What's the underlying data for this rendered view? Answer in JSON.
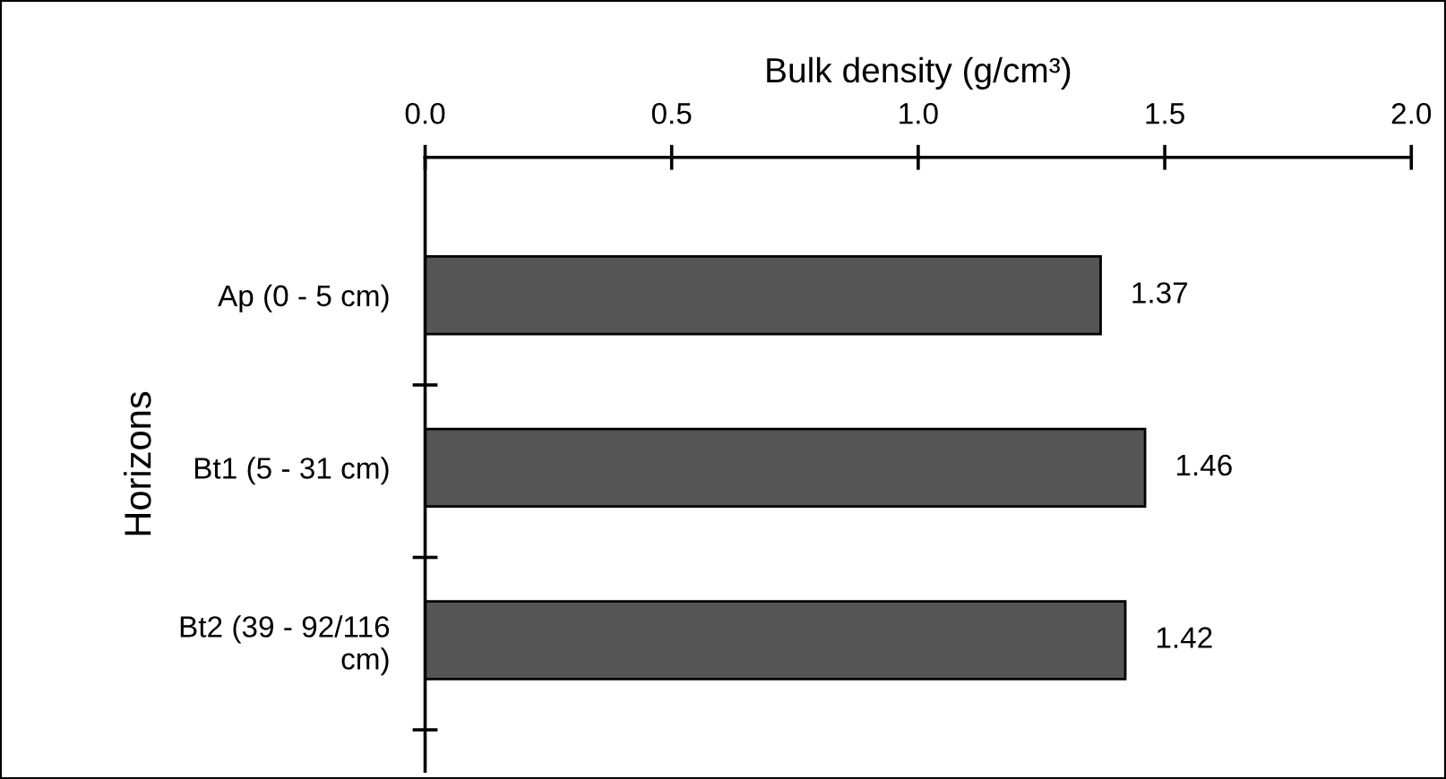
{
  "chart_data": {
    "type": "bar",
    "orientation": "horizontal",
    "xlabel": "Bulk density (g/cm³)",
    "ylabel": "Horizons",
    "categories": [
      "Ap (0 - 5 cm)",
      "Bt1 (5 - 31 cm)",
      "Bt2 (39 - 92/116\ncm)"
    ],
    "values": [
      1.37,
      1.46,
      1.42
    ],
    "color": "#555555",
    "data_labels": true,
    "grid": false,
    "legend": false,
    "xlim": [
      0,
      2
    ],
    "xticks": [
      {
        "value": 0,
        "label": "0.0"
      },
      {
        "value": 0.5,
        "label": "0.5"
      },
      {
        "value": 1,
        "label": "1.0"
      },
      {
        "value": 1.5,
        "label": "1.5"
      },
      {
        "value": 2,
        "label": "2.0"
      }
    ]
  }
}
